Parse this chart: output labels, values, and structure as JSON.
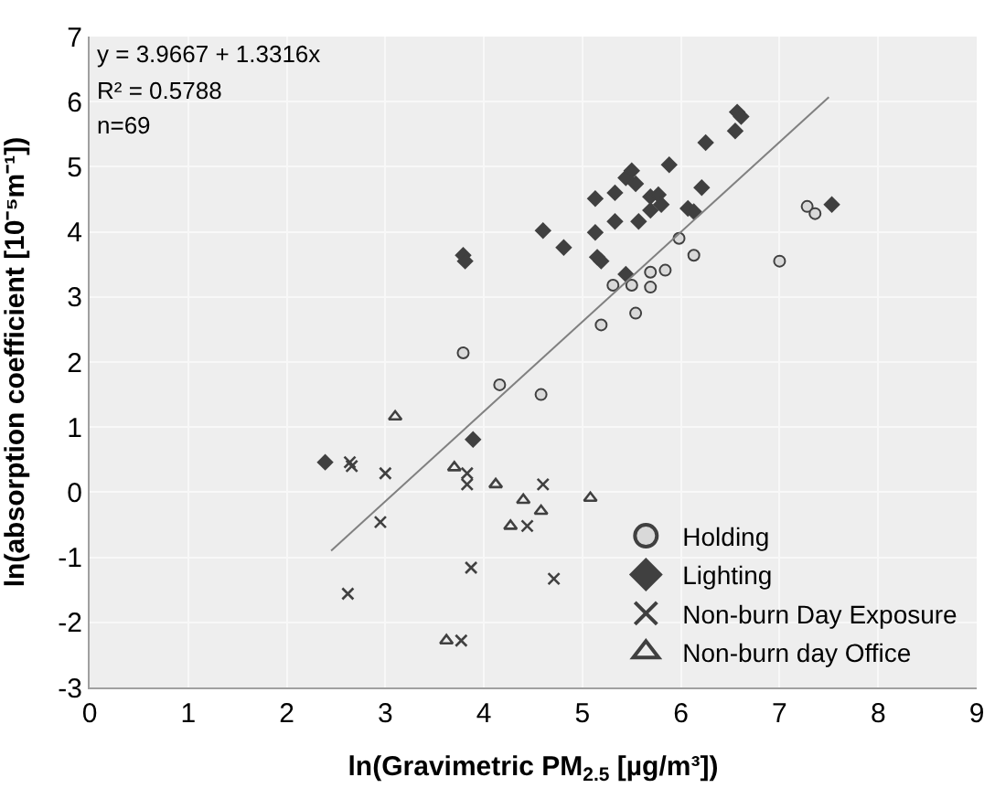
{
  "chart_data": {
    "type": "scatter",
    "xlabel": "ln(Gravimetric PM$_{2.5}$ [µg/m³])",
    "ylabel": "ln(absorption coefficient [10⁻⁵m⁻¹])",
    "xlim": [
      0,
      9
    ],
    "xticks": [
      0,
      1,
      2,
      3,
      4,
      5,
      6,
      7,
      8,
      9
    ],
    "ylim": [
      -3,
      7
    ],
    "yticks": [
      -3,
      -2,
      -1,
      0,
      1,
      2,
      3,
      4,
      5,
      6,
      7
    ],
    "grid": true,
    "legend": "bottom right",
    "annotations": [
      "y = 3.9667 + 1.3316x",
      "R² = 0.5788",
      "n=69"
    ],
    "series": [
      {
        "name": "Holding",
        "color": "#d9d9d9",
        "marker": "circle",
        "x": [
          3.79,
          4.16,
          4.58,
          5.19,
          5.31,
          5.5,
          5.54,
          5.69,
          5.69,
          5.84,
          5.98,
          6.13,
          7.0,
          7.28,
          7.36
        ],
        "values": [
          2.14,
          1.65,
          1.5,
          2.57,
          3.18,
          3.18,
          2.75,
          3.15,
          3.38,
          3.41,
          3.9,
          3.64,
          3.55,
          4.39,
          4.28
        ]
      },
      {
        "name": "Lighting",
        "color": "#404040",
        "marker": "diamond",
        "x": [
          6.57,
          6.61,
          6.55,
          6.25,
          5.88,
          5.5,
          5.44,
          5.54,
          5.13,
          5.33,
          5.69,
          5.77,
          5.8,
          5.69,
          6.21,
          6.07,
          6.13,
          5.33,
          5.57,
          5.13,
          4.6,
          4.81,
          5.15,
          5.19,
          5.44,
          7.53,
          3.79,
          3.81,
          3.89,
          2.39
        ],
        "values": [
          5.84,
          5.77,
          5.55,
          5.37,
          5.03,
          4.94,
          4.83,
          4.74,
          4.51,
          4.6,
          4.54,
          4.57,
          4.42,
          4.33,
          4.68,
          4.36,
          4.31,
          4.16,
          4.16,
          3.99,
          4.02,
          3.76,
          3.61,
          3.55,
          3.35,
          4.42,
          3.64,
          3.55,
          0.81,
          0.46
        ]
      },
      {
        "name": "Non-burn Day Exposure",
        "color": "#404040",
        "marker": "cross",
        "x": [
          2.64,
          2.66,
          3.0,
          2.95,
          2.62,
          3.83,
          3.83,
          3.87,
          3.77,
          4.6,
          4.44,
          4.71
        ],
        "values": [
          0.46,
          0.4,
          0.29,
          -0.46,
          -1.56,
          0.29,
          0.12,
          -1.16,
          -2.28,
          0.12,
          -0.52,
          -1.33
        ]
      },
      {
        "name": "Non-burn day Office",
        "color": "#404040",
        "marker": "triangle",
        "x": [
          3.1,
          3.7,
          4.12,
          4.27,
          4.4,
          4.58,
          5.08,
          3.62
        ],
        "values": [
          1.16,
          0.38,
          0.12,
          -0.52,
          -0.12,
          -0.29,
          -0.09,
          -2.28
        ]
      },
      {
        "type": "line",
        "color": "#808080",
        "line_style": "solid",
        "x": [
          2.45,
          7.5
        ],
        "values": [
          -0.9,
          6.07
        ]
      }
    ]
  }
}
